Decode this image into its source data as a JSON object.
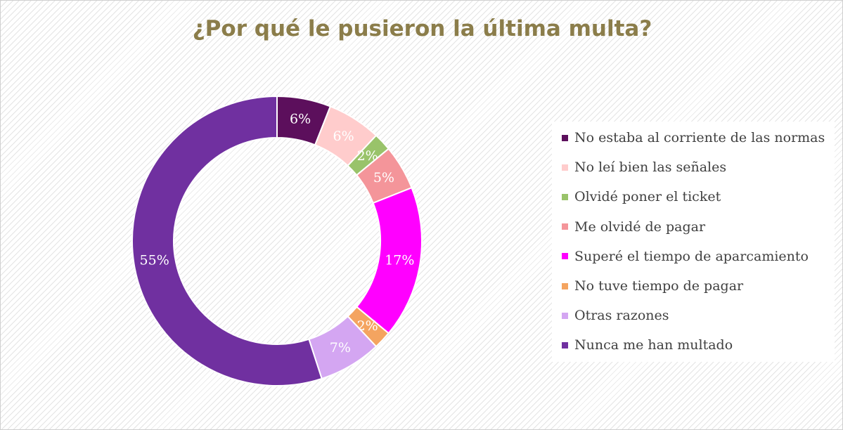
{
  "title_color": "#8b7d4a",
  "chart_data": {
    "type": "pie",
    "variant": "donut",
    "title": "¿Por qué le pusieron la última multa?",
    "legend_position": "right",
    "slices": [
      {
        "label": "No estaba al corriente de las normas",
        "value": 6,
        "display": "6%",
        "color": "#5c0f5c",
        "label_color": "#ffffff"
      },
      {
        "label": "No leí bien las señales",
        "value": 6,
        "display": "6%",
        "color": "#ffcccc",
        "label_color": "#ffffff"
      },
      {
        "label": "Olvidé poner el ticket",
        "value": 2,
        "display": "2%",
        "color": "#99c36a",
        "label_color": "#ffffff"
      },
      {
        "label": "Me olvidé de pagar",
        "value": 5,
        "display": "5%",
        "color": "#f4959a",
        "label_color": "#ffffff"
      },
      {
        "label": "Superé el tiempo de aparcamiento",
        "value": 17,
        "display": "17%",
        "color": "#ff00ff",
        "label_color": "#ffffff"
      },
      {
        "label": "No tuve tiempo de pagar",
        "value": 2,
        "display": "2%",
        "color": "#f4a460",
        "label_color": "#ffffff"
      },
      {
        "label": "Otras razones",
        "value": 7,
        "display": "7%",
        "color": "#d4a6f2",
        "label_color": "#ffffff"
      },
      {
        "label": "Nunca me han multado",
        "value": 55,
        "display": "55%",
        "color": "#7030a0",
        "label_color": "#ffffff"
      }
    ]
  }
}
